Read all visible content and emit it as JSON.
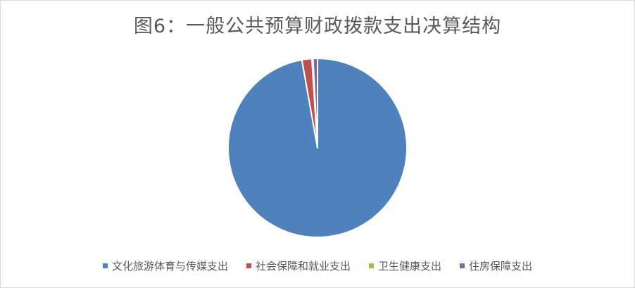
{
  "chart_data": {
    "type": "pie",
    "title": "图6：一般公共预算财政拨款支出决算结构",
    "legend_position": "bottom",
    "categories": [
      "文化旅游体育与传媒支出",
      "社会保障和就业支出",
      "卫生健康支出",
      "住房保障支出"
    ],
    "values": [
      97.2,
      1.8,
      0.2,
      0.8
    ],
    "colors": [
      "#4f81bd",
      "#c0504d",
      "#9bbb59",
      "#8064a2"
    ]
  }
}
